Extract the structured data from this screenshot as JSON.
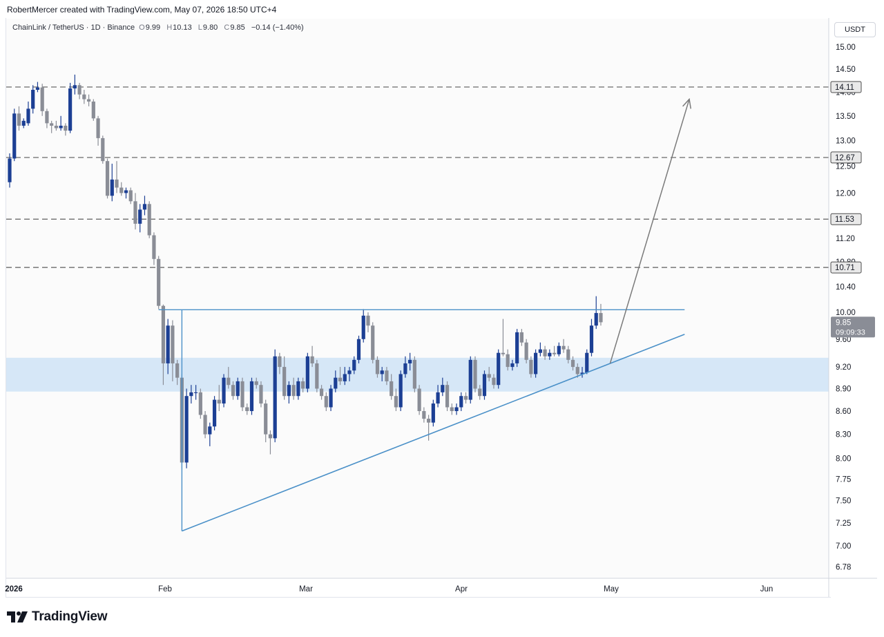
{
  "header": {
    "credit": "RobertMercer created with TradingView.com, May 07, 2026 18:50 UTC+4"
  },
  "legend": {
    "symbol": "ChainLink / TetherUS · 1D · Binance",
    "open_label": "O",
    "open": "9.99",
    "high_label": "H",
    "high": "10.13",
    "low_label": "L",
    "low": "9.80",
    "close_label": "C",
    "close": "9.85",
    "change": "−0.14 (−1.40%)"
  },
  "price_axis": {
    "unit": "USDT",
    "current_price": "9.85",
    "countdown": "09:09:33"
  },
  "footer": {
    "brand": "TradingView"
  },
  "colors": {
    "bull": "#1c3f94",
    "bear": "#8a8d96",
    "trendline": "#4a90c8",
    "zone": "#cfe3f6",
    "dashed": "#777777",
    "arrow": "#7a7a7a"
  },
  "chart_data": {
    "type": "candlestick",
    "x_ticks": [
      "2026",
      "Feb",
      "Mar",
      "Apr",
      "May",
      "Jun"
    ],
    "y_ticks": [
      "15.00",
      "14.50",
      "14.00",
      "13.50",
      "13.00",
      "12.50",
      "12.00",
      "11.50",
      "11.20",
      "10.80",
      "10.40",
      "10.00",
      "9.60",
      "9.20",
      "8.90",
      "8.60",
      "8.30",
      "8.00",
      "7.75",
      "7.50",
      "7.25",
      "7.00",
      "6.78"
    ],
    "y_scale": "log",
    "levels": [
      {
        "price": 14.11,
        "label": "14.11"
      },
      {
        "price": 12.67,
        "label": "12.67"
      },
      {
        "price": 11.53,
        "label": "11.53"
      },
      {
        "price": 10.71,
        "label": "10.71"
      }
    ],
    "support_zone": {
      "low": 8.86,
      "high": 9.33
    },
    "resistance_line": {
      "price": 10.04,
      "from": "2026-02-01",
      "to": "2026-05-25"
    },
    "triangle_base": {
      "from": "2026-02-06",
      "low": 7.16,
      "high": 10.04
    },
    "ascending_trendline": {
      "from_date": "2026-02-06",
      "from_price": 7.16,
      "to_date": "2026-05-25",
      "to_price": 9.67
    },
    "projection_arrow": {
      "from_date": "2026-05-09",
      "from_price": 9.25,
      "to_date": "2026-05-26",
      "to_price": 13.85
    },
    "candles": [
      {
        "d": "2025-12-31",
        "o": 12.2,
        "h": 12.75,
        "l": 12.1,
        "c": 12.65
      },
      {
        "d": "2026-01-01",
        "o": 12.65,
        "h": 13.65,
        "l": 12.6,
        "c": 13.55
      },
      {
        "d": "2026-01-02",
        "o": 13.55,
        "h": 13.7,
        "l": 13.2,
        "c": 13.3
      },
      {
        "d": "2026-01-03",
        "o": 13.3,
        "h": 13.45,
        "l": 13.25,
        "c": 13.4
      },
      {
        "d": "2026-01-04",
        "o": 13.35,
        "h": 13.8,
        "l": 13.3,
        "c": 13.65
      },
      {
        "d": "2026-01-05",
        "o": 13.65,
        "h": 14.15,
        "l": 13.55,
        "c": 14.05
      },
      {
        "d": "2026-01-06",
        "o": 14.05,
        "h": 14.22,
        "l": 14.0,
        "c": 14.1
      },
      {
        "d": "2026-01-07",
        "o": 14.1,
        "h": 14.18,
        "l": 13.5,
        "c": 13.6
      },
      {
        "d": "2026-01-08",
        "o": 13.6,
        "h": 13.65,
        "l": 13.25,
        "c": 13.35
      },
      {
        "d": "2026-01-09",
        "o": 13.35,
        "h": 13.4,
        "l": 13.15,
        "c": 13.3
      },
      {
        "d": "2026-01-10",
        "o": 13.3,
        "h": 13.4,
        "l": 13.2,
        "c": 13.25
      },
      {
        "d": "2026-01-11",
        "o": 13.25,
        "h": 13.5,
        "l": 13.2,
        "c": 13.3
      },
      {
        "d": "2026-01-12",
        "o": 13.3,
        "h": 13.35,
        "l": 13.1,
        "c": 13.2
      },
      {
        "d": "2026-01-13",
        "o": 13.2,
        "h": 14.2,
        "l": 13.15,
        "c": 14.08
      },
      {
        "d": "2026-01-14",
        "o": 14.08,
        "h": 14.38,
        "l": 13.95,
        "c": 14.15
      },
      {
        "d": "2026-01-15",
        "o": 14.15,
        "h": 14.2,
        "l": 13.85,
        "c": 13.95
      },
      {
        "d": "2026-01-16",
        "o": 13.95,
        "h": 14.05,
        "l": 13.75,
        "c": 13.85
      },
      {
        "d": "2026-01-17",
        "o": 13.85,
        "h": 13.95,
        "l": 13.7,
        "c": 13.8
      },
      {
        "d": "2026-01-18",
        "o": 13.8,
        "h": 13.85,
        "l": 13.4,
        "c": 13.45
      },
      {
        "d": "2026-01-19",
        "o": 13.45,
        "h": 13.5,
        "l": 12.9,
        "c": 13.05
      },
      {
        "d": "2026-01-20",
        "o": 13.05,
        "h": 13.1,
        "l": 12.55,
        "c": 12.6
      },
      {
        "d": "2026-01-21",
        "o": 12.6,
        "h": 12.65,
        "l": 11.9,
        "c": 11.95
      },
      {
        "d": "2026-01-22",
        "o": 11.95,
        "h": 12.55,
        "l": 11.85,
        "c": 12.25
      },
      {
        "d": "2026-01-23",
        "o": 12.25,
        "h": 12.6,
        "l": 12.0,
        "c": 12.1
      },
      {
        "d": "2026-01-24",
        "o": 12.1,
        "h": 12.2,
        "l": 11.95,
        "c": 12.0
      },
      {
        "d": "2026-01-25",
        "o": 12.0,
        "h": 12.1,
        "l": 11.9,
        "c": 12.05
      },
      {
        "d": "2026-01-26",
        "o": 12.05,
        "h": 12.1,
        "l": 11.8,
        "c": 11.85
      },
      {
        "d": "2026-01-27",
        "o": 11.85,
        "h": 12.0,
        "l": 11.35,
        "c": 11.45
      },
      {
        "d": "2026-01-28",
        "o": 11.45,
        "h": 11.8,
        "l": 11.3,
        "c": 11.7
      },
      {
        "d": "2026-01-29",
        "o": 11.7,
        "h": 11.95,
        "l": 11.6,
        "c": 11.8
      },
      {
        "d": "2026-01-30",
        "o": 11.8,
        "h": 11.85,
        "l": 11.2,
        "c": 11.25
      },
      {
        "d": "2026-01-31",
        "o": 11.25,
        "h": 11.3,
        "l": 10.75,
        "c": 10.85
      },
      {
        "d": "2026-02-01",
        "o": 10.85,
        "h": 10.9,
        "l": 10.05,
        "c": 10.1
      },
      {
        "d": "2026-02-02",
        "o": 10.1,
        "h": 10.12,
        "l": 8.95,
        "c": 9.25
      },
      {
        "d": "2026-02-03",
        "o": 9.25,
        "h": 9.9,
        "l": 9.1,
        "c": 9.8
      },
      {
        "d": "2026-02-04",
        "o": 9.8,
        "h": 9.88,
        "l": 9.0,
        "c": 9.25
      },
      {
        "d": "2026-02-05",
        "o": 9.25,
        "h": 9.3,
        "l": 8.95,
        "c": 9.05
      },
      {
        "d": "2026-02-06",
        "o": 9.05,
        "h": 9.1,
        "l": 7.88,
        "c": 7.95
      },
      {
        "d": "2026-02-07",
        "o": 7.95,
        "h": 8.9,
        "l": 7.88,
        "c": 8.8
      },
      {
        "d": "2026-02-08",
        "o": 8.8,
        "h": 8.95,
        "l": 8.7,
        "c": 8.85
      },
      {
        "d": "2026-02-09",
        "o": 8.85,
        "h": 8.95,
        "l": 8.75,
        "c": 8.85
      },
      {
        "d": "2026-02-10",
        "o": 8.85,
        "h": 8.9,
        "l": 8.5,
        "c": 8.55
      },
      {
        "d": "2026-02-11",
        "o": 8.55,
        "h": 8.6,
        "l": 8.25,
        "c": 8.3
      },
      {
        "d": "2026-02-12",
        "o": 8.3,
        "h": 8.45,
        "l": 8.15,
        "c": 8.4
      },
      {
        "d": "2026-02-13",
        "o": 8.4,
        "h": 8.8,
        "l": 8.35,
        "c": 8.75
      },
      {
        "d": "2026-02-14",
        "o": 8.75,
        "h": 8.95,
        "l": 8.6,
        "c": 8.7
      },
      {
        "d": "2026-02-15",
        "o": 8.7,
        "h": 9.1,
        "l": 8.65,
        "c": 9.05
      },
      {
        "d": "2026-02-16",
        "o": 9.05,
        "h": 9.2,
        "l": 8.9,
        "c": 8.95
      },
      {
        "d": "2026-02-17",
        "o": 8.95,
        "h": 9.0,
        "l": 8.75,
        "c": 8.8
      },
      {
        "d": "2026-02-18",
        "o": 8.8,
        "h": 9.05,
        "l": 8.75,
        "c": 9.0
      },
      {
        "d": "2026-02-19",
        "o": 9.0,
        "h": 9.05,
        "l": 8.6,
        "c": 8.65
      },
      {
        "d": "2026-02-20",
        "o": 8.65,
        "h": 8.7,
        "l": 8.55,
        "c": 8.6
      },
      {
        "d": "2026-02-21",
        "o": 8.6,
        "h": 9.05,
        "l": 8.55,
        "c": 9.0
      },
      {
        "d": "2026-02-22",
        "o": 9.0,
        "h": 9.05,
        "l": 8.9,
        "c": 8.95
      },
      {
        "d": "2026-02-23",
        "o": 8.95,
        "h": 9.0,
        "l": 8.65,
        "c": 8.7
      },
      {
        "d": "2026-02-24",
        "o": 8.7,
        "h": 8.75,
        "l": 8.2,
        "c": 8.3
      },
      {
        "d": "2026-02-25",
        "o": 8.3,
        "h": 8.35,
        "l": 8.05,
        "c": 8.25
      },
      {
        "d": "2026-02-26",
        "o": 8.25,
        "h": 9.45,
        "l": 8.2,
        "c": 9.35
      },
      {
        "d": "2026-02-27",
        "o": 9.35,
        "h": 9.4,
        "l": 9.1,
        "c": 9.2
      },
      {
        "d": "2026-02-28",
        "o": 9.2,
        "h": 9.35,
        "l": 8.75,
        "c": 8.8
      },
      {
        "d": "2026-03-01",
        "o": 8.8,
        "h": 9.0,
        "l": 8.7,
        "c": 8.95
      },
      {
        "d": "2026-03-02",
        "o": 8.95,
        "h": 9.05,
        "l": 8.75,
        "c": 8.8
      },
      {
        "d": "2026-03-03",
        "o": 8.8,
        "h": 9.05,
        "l": 8.75,
        "c": 9.0
      },
      {
        "d": "2026-03-04",
        "o": 9.0,
        "h": 9.05,
        "l": 8.85,
        "c": 8.9
      },
      {
        "d": "2026-03-05",
        "o": 8.9,
        "h": 9.4,
        "l": 8.85,
        "c": 9.35
      },
      {
        "d": "2026-03-06",
        "o": 9.35,
        "h": 9.5,
        "l": 9.2,
        "c": 9.25
      },
      {
        "d": "2026-03-07",
        "o": 9.25,
        "h": 9.3,
        "l": 8.85,
        "c": 8.9
      },
      {
        "d": "2026-03-08",
        "o": 8.9,
        "h": 8.95,
        "l": 8.75,
        "c": 8.8
      },
      {
        "d": "2026-03-09",
        "o": 8.8,
        "h": 8.85,
        "l": 8.6,
        "c": 8.65
      },
      {
        "d": "2026-03-10",
        "o": 8.65,
        "h": 8.95,
        "l": 8.6,
        "c": 8.9
      },
      {
        "d": "2026-03-11",
        "o": 8.9,
        "h": 9.15,
        "l": 8.85,
        "c": 9.05
      },
      {
        "d": "2026-03-12",
        "o": 9.05,
        "h": 9.2,
        "l": 8.95,
        "c": 9.0
      },
      {
        "d": "2026-03-13",
        "o": 9.0,
        "h": 9.2,
        "l": 8.95,
        "c": 9.1
      },
      {
        "d": "2026-03-14",
        "o": 9.1,
        "h": 9.2,
        "l": 9.0,
        "c": 9.15
      },
      {
        "d": "2026-03-15",
        "o": 9.15,
        "h": 9.35,
        "l": 9.1,
        "c": 9.3
      },
      {
        "d": "2026-03-16",
        "o": 9.3,
        "h": 9.65,
        "l": 9.25,
        "c": 9.6
      },
      {
        "d": "2026-03-17",
        "o": 9.6,
        "h": 10.05,
        "l": 9.55,
        "c": 9.95
      },
      {
        "d": "2026-03-18",
        "o": 9.95,
        "h": 10.0,
        "l": 9.7,
        "c": 9.8
      },
      {
        "d": "2026-03-19",
        "o": 9.8,
        "h": 9.85,
        "l": 9.25,
        "c": 9.3
      },
      {
        "d": "2026-03-20",
        "o": 9.3,
        "h": 9.35,
        "l": 9.05,
        "c": 9.1
      },
      {
        "d": "2026-03-21",
        "o": 9.1,
        "h": 9.2,
        "l": 9.0,
        "c": 9.15
      },
      {
        "d": "2026-03-22",
        "o": 9.15,
        "h": 9.2,
        "l": 8.95,
        "c": 9.0
      },
      {
        "d": "2026-03-23",
        "o": 9.0,
        "h": 9.1,
        "l": 8.75,
        "c": 8.8
      },
      {
        "d": "2026-03-24",
        "o": 8.8,
        "h": 8.9,
        "l": 8.6,
        "c": 8.65
      },
      {
        "d": "2026-03-25",
        "o": 8.65,
        "h": 9.15,
        "l": 8.6,
        "c": 9.1
      },
      {
        "d": "2026-03-26",
        "o": 9.1,
        "h": 9.35,
        "l": 9.05,
        "c": 9.25
      },
      {
        "d": "2026-03-27",
        "o": 9.25,
        "h": 9.4,
        "l": 9.15,
        "c": 9.3
      },
      {
        "d": "2026-03-28",
        "o": 9.3,
        "h": 9.35,
        "l": 8.85,
        "c": 8.9
      },
      {
        "d": "2026-03-29",
        "o": 8.9,
        "h": 8.95,
        "l": 8.55,
        "c": 8.6
      },
      {
        "d": "2026-03-30",
        "o": 8.6,
        "h": 8.65,
        "l": 8.45,
        "c": 8.5
      },
      {
        "d": "2026-03-31",
        "o": 8.5,
        "h": 8.55,
        "l": 8.22,
        "c": 8.45
      },
      {
        "d": "2026-04-01",
        "o": 8.45,
        "h": 8.75,
        "l": 8.4,
        "c": 8.7
      },
      {
        "d": "2026-04-02",
        "o": 8.7,
        "h": 8.95,
        "l": 8.65,
        "c": 8.85
      },
      {
        "d": "2026-04-03",
        "o": 8.85,
        "h": 9.05,
        "l": 8.8,
        "c": 8.95
      },
      {
        "d": "2026-04-04",
        "o": 8.95,
        "h": 9.0,
        "l": 8.6,
        "c": 8.65
      },
      {
        "d": "2026-04-05",
        "o": 8.65,
        "h": 8.7,
        "l": 8.55,
        "c": 8.6
      },
      {
        "d": "2026-04-06",
        "o": 8.6,
        "h": 8.7,
        "l": 8.55,
        "c": 8.65
      },
      {
        "d": "2026-04-07",
        "o": 8.65,
        "h": 8.85,
        "l": 8.6,
        "c": 8.8
      },
      {
        "d": "2026-04-08",
        "o": 8.8,
        "h": 8.85,
        "l": 8.7,
        "c": 8.75
      },
      {
        "d": "2026-04-09",
        "o": 8.75,
        "h": 9.35,
        "l": 8.7,
        "c": 9.3
      },
      {
        "d": "2026-04-10",
        "o": 9.3,
        "h": 9.35,
        "l": 8.85,
        "c": 8.9
      },
      {
        "d": "2026-04-11",
        "o": 8.9,
        "h": 8.95,
        "l": 8.75,
        "c": 8.8
      },
      {
        "d": "2026-04-12",
        "o": 8.8,
        "h": 9.15,
        "l": 8.75,
        "c": 9.1
      },
      {
        "d": "2026-04-13",
        "o": 9.1,
        "h": 9.2,
        "l": 9.0,
        "c": 9.05
      },
      {
        "d": "2026-04-14",
        "o": 9.05,
        "h": 9.1,
        "l": 8.9,
        "c": 8.95
      },
      {
        "d": "2026-04-15",
        "o": 8.95,
        "h": 9.45,
        "l": 8.9,
        "c": 9.4
      },
      {
        "d": "2026-04-16",
        "o": 9.4,
        "h": 9.9,
        "l": 9.35,
        "c": 9.38
      },
      {
        "d": "2026-04-17",
        "o": 9.38,
        "h": 9.45,
        "l": 9.15,
        "c": 9.2
      },
      {
        "d": "2026-04-18",
        "o": 9.2,
        "h": 9.3,
        "l": 9.15,
        "c": 9.25
      },
      {
        "d": "2026-04-19",
        "o": 9.25,
        "h": 9.75,
        "l": 9.2,
        "c": 9.7
      },
      {
        "d": "2026-04-20",
        "o": 9.7,
        "h": 9.75,
        "l": 9.5,
        "c": 9.55
      },
      {
        "d": "2026-04-21",
        "o": 9.55,
        "h": 9.6,
        "l": 9.25,
        "c": 9.3
      },
      {
        "d": "2026-04-22",
        "o": 9.3,
        "h": 9.35,
        "l": 9.05,
        "c": 9.1
      },
      {
        "d": "2026-04-23",
        "o": 9.1,
        "h": 9.45,
        "l": 9.05,
        "c": 9.4
      },
      {
        "d": "2026-04-24",
        "o": 9.4,
        "h": 9.55,
        "l": 9.35,
        "c": 9.45
      },
      {
        "d": "2026-04-25",
        "o": 9.45,
        "h": 9.5,
        "l": 9.3,
        "c": 9.35
      },
      {
        "d": "2026-04-26",
        "o": 9.35,
        "h": 9.45,
        "l": 9.3,
        "c": 9.4
      },
      {
        "d": "2026-04-27",
        "o": 9.4,
        "h": 9.5,
        "l": 9.35,
        "c": 9.38
      },
      {
        "d": "2026-04-28",
        "o": 9.38,
        "h": 9.55,
        "l": 9.35,
        "c": 9.5
      },
      {
        "d": "2026-04-29",
        "o": 9.5,
        "h": 9.6,
        "l": 9.4,
        "c": 9.45
      },
      {
        "d": "2026-04-30",
        "o": 9.45,
        "h": 9.5,
        "l": 9.25,
        "c": 9.3
      },
      {
        "d": "2026-05-01",
        "o": 9.3,
        "h": 9.35,
        "l": 9.15,
        "c": 9.2
      },
      {
        "d": "2026-05-02",
        "o": 9.2,
        "h": 9.25,
        "l": 9.05,
        "c": 9.1
      },
      {
        "d": "2026-05-03",
        "o": 9.1,
        "h": 9.2,
        "l": 9.05,
        "c": 9.12
      },
      {
        "d": "2026-05-04",
        "o": 9.12,
        "h": 9.45,
        "l": 9.1,
        "c": 9.4
      },
      {
        "d": "2026-05-05",
        "o": 9.4,
        "h": 9.9,
        "l": 9.35,
        "c": 9.8
      },
      {
        "d": "2026-05-06",
        "o": 9.8,
        "h": 10.25,
        "l": 9.75,
        "c": 9.99
      },
      {
        "d": "2026-05-07",
        "o": 9.99,
        "h": 10.13,
        "l": 9.8,
        "c": 9.85
      }
    ]
  }
}
